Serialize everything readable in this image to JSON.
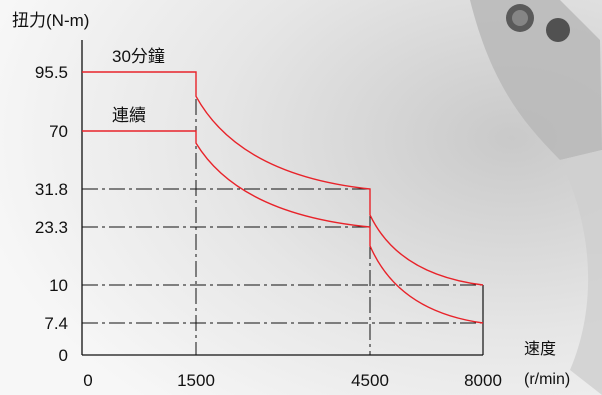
{
  "chart_data": {
    "type": "line",
    "ylabel": "扭力(N-m)",
    "xlabel_line1": "速度",
    "xlabel_line2": "(r/min)",
    "x_ticks": [
      "0",
      "1500",
      "4500",
      "8000"
    ],
    "y_ticks": [
      "0",
      "7.4",
      "10",
      "23.3",
      "31.8",
      "70",
      "95.5"
    ],
    "x_tick_values": [
      0,
      1500,
      4500,
      8000
    ],
    "y_tick_values": [
      0,
      7.4,
      10,
      23.3,
      31.8,
      70,
      95.5
    ],
    "series": [
      {
        "name": "30分鐘",
        "color": "#e8232a",
        "points": [
          [
            0,
            95.5
          ],
          [
            1500,
            95.5
          ],
          [
            1500,
            85
          ],
          [
            4500,
            31.8
          ],
          [
            4500,
            26
          ],
          [
            8000,
            10
          ]
        ]
      },
      {
        "name": "連續",
        "color": "#e8232a",
        "points": [
          [
            0,
            70
          ],
          [
            1500,
            70
          ],
          [
            1500,
            62
          ],
          [
            4500,
            23.3
          ],
          [
            4500,
            19
          ],
          [
            8000,
            7.4
          ]
        ]
      }
    ],
    "reference_lines_y": [
      31.8,
      23.3,
      10,
      7.4
    ],
    "reference_lines_x": [
      1500,
      4500
    ],
    "grid": false,
    "xlim": [
      0,
      8000
    ],
    "ylim": [
      0,
      95.5
    ]
  }
}
